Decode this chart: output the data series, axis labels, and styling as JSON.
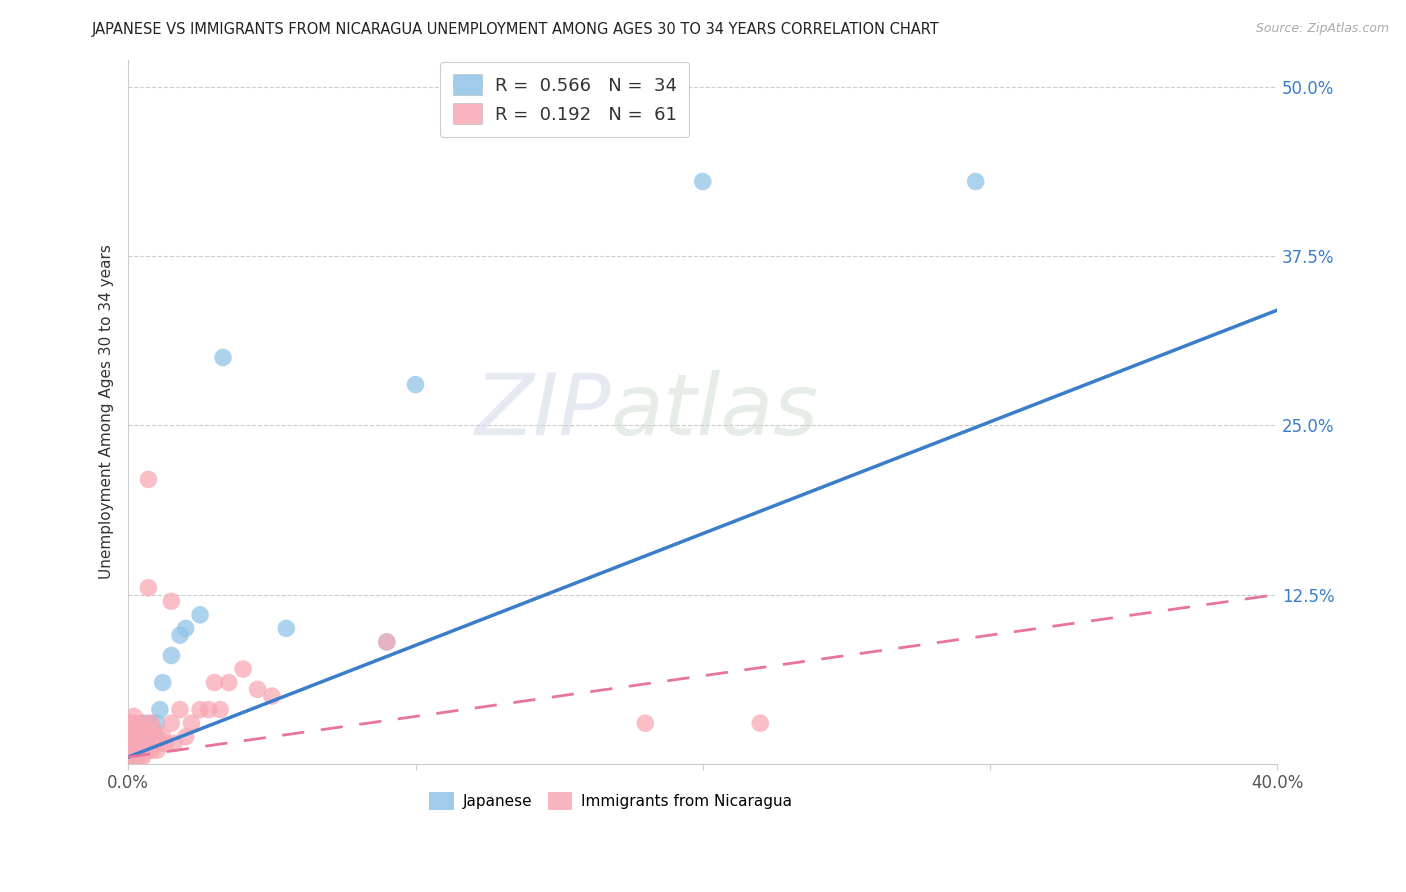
{
  "title": "JAPANESE VS IMMIGRANTS FROM NICARAGUA UNEMPLOYMENT AMONG AGES 30 TO 34 YEARS CORRELATION CHART",
  "source": "Source: ZipAtlas.com",
  "ylabel": "Unemployment Among Ages 30 to 34 years",
  "xlim": [
    0.0,
    0.4
  ],
  "ylim": [
    0.0,
    0.52
  ],
  "xticks": [
    0.0,
    0.1,
    0.2,
    0.3,
    0.4
  ],
  "xtick_labels": [
    "0.0%",
    "",
    "",
    "",
    "40.0%"
  ],
  "yticks": [
    0.0,
    0.125,
    0.25,
    0.375,
    0.5
  ],
  "ytick_labels": [
    "",
    "12.5%",
    "25.0%",
    "37.5%",
    "50.0%"
  ],
  "japanese_R": 0.566,
  "japanese_N": 34,
  "nicaragua_R": 0.192,
  "nicaragua_N": 61,
  "japanese_color": "#90c4e8",
  "nicaragua_color": "#f7a8b4",
  "trend_blue": "#3a7dc9",
  "trend_pink": "#e8749a",
  "watermark_zip": "ZIP",
  "watermark_atlas": "atlas",
  "jp_trend_x": [
    0.0,
    0.4
  ],
  "jp_trend_y": [
    0.005,
    0.335
  ],
  "nic_trend_x": [
    0.0,
    0.4
  ],
  "nic_trend_y": [
    0.005,
    0.125
  ],
  "jp_x": [
    0.001,
    0.001,
    0.002,
    0.002,
    0.002,
    0.002,
    0.003,
    0.003,
    0.003,
    0.004,
    0.004,
    0.004,
    0.005,
    0.005,
    0.005,
    0.006,
    0.006,
    0.007,
    0.007,
    0.008,
    0.009,
    0.01,
    0.011,
    0.012,
    0.015,
    0.018,
    0.02,
    0.025,
    0.033,
    0.09,
    0.2,
    0.295,
    0.1,
    0.055
  ],
  "jp_y": [
    0.005,
    0.01,
    0.005,
    0.01,
    0.015,
    0.02,
    0.005,
    0.01,
    0.02,
    0.01,
    0.015,
    0.025,
    0.01,
    0.02,
    0.03,
    0.015,
    0.025,
    0.02,
    0.03,
    0.02,
    0.025,
    0.03,
    0.04,
    0.06,
    0.08,
    0.095,
    0.1,
    0.11,
    0.3,
    0.09,
    0.43,
    0.43,
    0.28,
    0.1
  ],
  "nic_x": [
    0.001,
    0.001,
    0.001,
    0.001,
    0.001,
    0.001,
    0.001,
    0.002,
    0.002,
    0.002,
    0.002,
    0.002,
    0.002,
    0.002,
    0.003,
    0.003,
    0.003,
    0.003,
    0.003,
    0.004,
    0.004,
    0.004,
    0.004,
    0.005,
    0.005,
    0.005,
    0.005,
    0.006,
    0.006,
    0.006,
    0.007,
    0.007,
    0.007,
    0.007,
    0.008,
    0.008,
    0.008,
    0.009,
    0.009,
    0.01,
    0.01,
    0.011,
    0.012,
    0.013,
    0.015,
    0.015,
    0.016,
    0.018,
    0.02,
    0.022,
    0.025,
    0.028,
    0.03,
    0.032,
    0.035,
    0.04,
    0.045,
    0.05,
    0.09,
    0.18,
    0.22
  ],
  "nic_y": [
    0.005,
    0.01,
    0.01,
    0.015,
    0.02,
    0.025,
    0.03,
    0.005,
    0.01,
    0.015,
    0.02,
    0.025,
    0.03,
    0.035,
    0.005,
    0.01,
    0.015,
    0.02,
    0.025,
    0.005,
    0.01,
    0.015,
    0.02,
    0.005,
    0.01,
    0.02,
    0.03,
    0.01,
    0.015,
    0.025,
    0.01,
    0.015,
    0.13,
    0.21,
    0.01,
    0.02,
    0.03,
    0.015,
    0.025,
    0.01,
    0.02,
    0.015,
    0.02,
    0.015,
    0.12,
    0.03,
    0.015,
    0.04,
    0.02,
    0.03,
    0.04,
    0.04,
    0.06,
    0.04,
    0.06,
    0.07,
    0.055,
    0.05,
    0.09,
    0.03,
    0.03
  ]
}
